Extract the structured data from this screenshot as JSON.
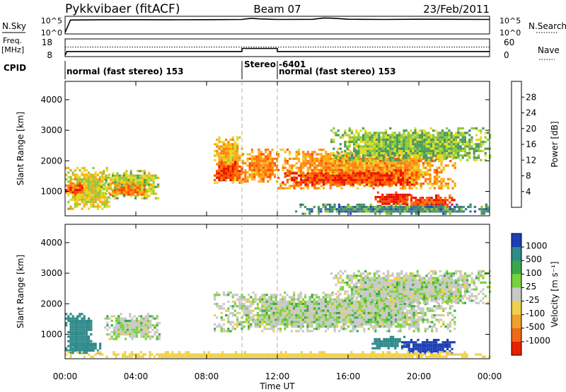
{
  "header": {
    "station": "Pykkvibaer (fitACF)",
    "beam": "Beam 07",
    "date": "23/Feb/2011"
  },
  "sky_panel": {
    "left_label": "N.Sky",
    "right_label": "N.Search",
    "ticks_left": [
      "10^5",
      "10^0"
    ],
    "ticks_right": [
      "10^5",
      "10^0"
    ]
  },
  "freq_panel": {
    "left_label_line1": "Freq.",
    "left_label_line2": "[MHz]",
    "ticks_left": [
      "18",
      "8"
    ],
    "right_label": "Nave",
    "ticks_right": [
      "60",
      "0"
    ]
  },
  "cpid_panel": {
    "label": "CPID",
    "segments": [
      {
        "text": "normal (fast stereo) 153",
        "start_h": 0,
        "end_h": 10
      },
      {
        "text": "Stereo",
        "start_h": 10,
        "end_h": 12
      },
      {
        "text": "-6401",
        "start_h": 12,
        "end_h": 12
      },
      {
        "text": "normal (fast stereo) 153",
        "start_h": 12,
        "end_h": 24
      }
    ]
  },
  "power_colorbar": {
    "label": "Power [dB]",
    "ticks": [
      "28",
      "24",
      "20",
      "16",
      "12",
      "8",
      "4"
    ],
    "colors": [
      "#0000ff",
      "#2846c8",
      "#3a7a8a",
      "#4a9a5a",
      "#8cc83c",
      "#e0dc1e",
      "#ffaa14",
      "#ff7a0a",
      "#ff4a00",
      "#e81000"
    ]
  },
  "velocity_colorbar": {
    "label": "Velocity [m s⁻¹]",
    "ticks": [
      "1000",
      "500",
      "100",
      "25",
      "-25",
      "-100",
      "-500",
      "-1000"
    ],
    "colors": [
      "#1d3fb4",
      "#2f8a8a",
      "#3aa84a",
      "#78d23c",
      "#c8c8c8",
      "#f0d04a",
      "#f0a030",
      "#f06a18",
      "#e82000"
    ]
  },
  "x_axis": {
    "label": "Time UT",
    "ticks": [
      "00:00",
      "04:00",
      "08:00",
      "12:00",
      "16:00",
      "20:00",
      "00:00"
    ],
    "range_h": [
      0,
      24
    ]
  },
  "y_axis": {
    "label": "Slant Range [km]",
    "ticks": [
      "1000",
      "2000",
      "3000",
      "4000"
    ],
    "range_km": [
      200,
      4600
    ]
  },
  "chart_data": [
    {
      "type": "line",
      "name": "N.Sky",
      "x": [
        0,
        0.3,
        2,
        4,
        6,
        8,
        10,
        10.5,
        11,
        12,
        14,
        14.6,
        15.1,
        16,
        18,
        20,
        22,
        24
      ],
      "y": [
        1,
        16000,
        20000,
        22000,
        20000,
        22000,
        25000,
        60000,
        40000,
        26000,
        28000,
        80000,
        70000,
        30000,
        26000,
        30000,
        28000,
        25000
      ],
      "ylim": [
        1,
        100000
      ],
      "yscale": "log"
    },
    {
      "type": "line",
      "name": "Freq.",
      "x": [
        0,
        0.1,
        10,
        10.0,
        12,
        12.0,
        24
      ],
      "y": [
        8,
        10.5,
        10.5,
        12.5,
        12.5,
        10.5,
        10.5
      ],
      "ylim": [
        8,
        18
      ]
    },
    {
      "type": "heatmap",
      "title": "Power",
      "xlabel": "Time UT",
      "ylabel": "Slant Range [km]",
      "xlim": [
        0,
        24
      ],
      "ylim": [
        200,
        4600
      ],
      "zlabel": "Power [dB]",
      "zrange": [
        0,
        32
      ],
      "regions": [
        {
          "t": [
            0,
            2.5
          ],
          "r": [
            400,
            1800
          ],
          "db": 18
        },
        {
          "t": [
            0,
            1
          ],
          "r": [
            900,
            1300
          ],
          "db": 26
        },
        {
          "t": [
            2,
            5.3
          ],
          "r": [
            800,
            1700
          ],
          "db": 16
        },
        {
          "t": [
            2.5,
            4.5
          ],
          "r": [
            900,
            1300
          ],
          "db": 24
        },
        {
          "t": [
            8.4,
            10
          ],
          "r": [
            1300,
            2800
          ],
          "db": 20
        },
        {
          "t": [
            8.4,
            10
          ],
          "r": [
            1400,
            2000
          ],
          "db": 27
        },
        {
          "t": [
            10,
            12
          ],
          "r": [
            1300,
            2400
          ],
          "db": 23
        },
        {
          "t": [
            12,
            22
          ],
          "r": [
            1100,
            2400
          ],
          "db": 22
        },
        {
          "t": [
            12,
            20
          ],
          "r": [
            1200,
            1700
          ],
          "db": 28
        },
        {
          "t": [
            17.5,
            19.5
          ],
          "r": [
            550,
            1000
          ],
          "db": 30
        },
        {
          "t": [
            19,
            22
          ],
          "r": [
            400,
            900
          ],
          "db": 28
        },
        {
          "t": [
            15,
            24
          ],
          "r": [
            2000,
            3100
          ],
          "db": 14
        },
        {
          "t": [
            13,
            24
          ],
          "r": [
            300,
            600
          ],
          "db": 10
        }
      ]
    },
    {
      "type": "heatmap",
      "title": "Velocity",
      "xlabel": "Time UT",
      "ylabel": "Slant Range [km]",
      "xlim": [
        0,
        24
      ],
      "ylim": [
        200,
        4600
      ],
      "zlabel": "Velocity [m s-1]",
      "zrange": [
        -1000,
        1000
      ],
      "regions": [
        {
          "t": [
            0,
            1.5
          ],
          "r": [
            500,
            1700
          ],
          "v": 150
        },
        {
          "t": [
            0,
            2
          ],
          "r": [
            400,
            800
          ],
          "v": 400
        },
        {
          "t": [
            2.2,
            5.3
          ],
          "r": [
            850,
            1700
          ],
          "v": 0
        },
        {
          "t": [
            8.4,
            22
          ],
          "r": [
            1100,
            2400
          ],
          "v": 0
        },
        {
          "t": [
            15,
            24
          ],
          "r": [
            2000,
            3100
          ],
          "v": 0
        },
        {
          "t": [
            17.2,
            19.2
          ],
          "r": [
            550,
            950
          ],
          "v": 200
        },
        {
          "t": [
            19,
            22
          ],
          "r": [
            400,
            850
          ],
          "v": 800
        },
        {
          "t": [
            0,
            24
          ],
          "r": [
            250,
            450
          ],
          "v": -60
        }
      ]
    }
  ]
}
